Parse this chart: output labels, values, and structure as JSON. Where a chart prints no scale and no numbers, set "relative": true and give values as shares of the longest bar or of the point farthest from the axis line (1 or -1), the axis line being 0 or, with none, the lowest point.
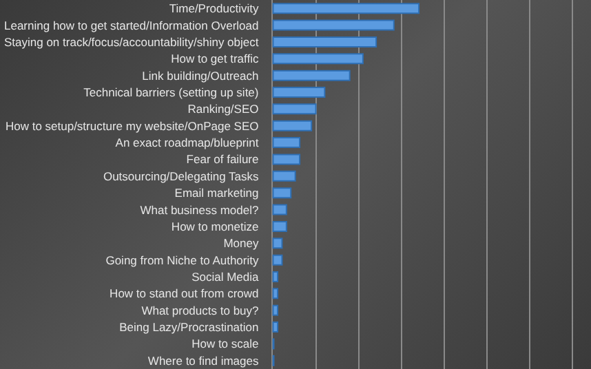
{
  "chart_data": {
    "type": "bar",
    "orientation": "horizontal",
    "relative": true,
    "grid": "x",
    "color": "#5b9be0",
    "categories": [
      "Time/Productivity",
      "Learning how to get started/Information Overload",
      "Staying on track/focus/accountability/shiny object",
      "How to get traffic",
      "Link building/Outreach",
      "Technical barriers (setting up site)",
      "Ranking/SEO",
      "How to setup/structure my website/OnPage SEO",
      "An exact roadmap/blueprint",
      "Fear of failure",
      "Outsourcing/Delegating Tasks",
      "Email marketing",
      "What business model?",
      "How to monetize",
      "Money",
      "Going from Niche to Authority",
      "Social Media",
      "How to stand out from crowd",
      "What products to buy?",
      "Being Lazy/Procrastination",
      "How to scale",
      "Where to find images"
    ],
    "values": [
      1,
      0.83,
      0.71,
      0.62,
      0.53,
      0.36,
      0.3,
      0.27,
      0.19,
      0.19,
      0.16,
      0.13,
      0.1,
      0.1,
      0.07,
      0.07,
      0.04,
      0.04,
      0.04,
      0.04,
      0.014,
      0.014
    ]
  }
}
